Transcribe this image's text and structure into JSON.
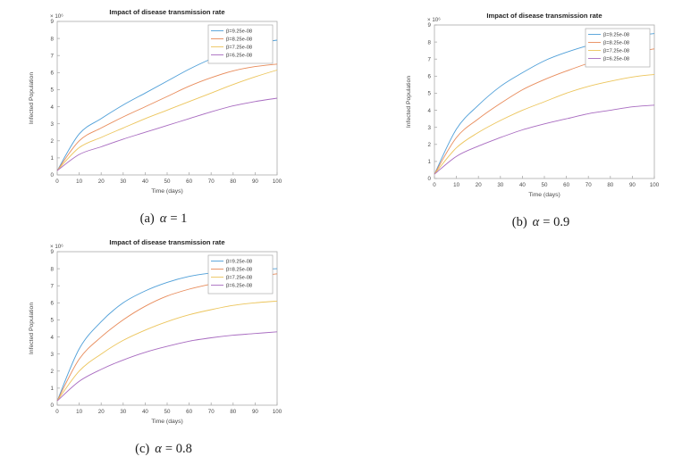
{
  "page": {
    "background": "#ffffff"
  },
  "chart_data": [
    {
      "id": "a",
      "type": "line",
      "title": "Impact of disease transmission rate",
      "xlabel": "Time (days)",
      "ylabel": "Infected Population",
      "exponent_label": "× 10⁶",
      "caption_label": "(a)",
      "caption_symbol": "α",
      "caption_value": "= 1",
      "xlim": [
        0,
        100
      ],
      "ylim": [
        0,
        9
      ],
      "xticks": [
        0,
        10,
        20,
        30,
        40,
        50,
        60,
        70,
        80,
        90,
        100
      ],
      "yticks": [
        0,
        1,
        2,
        3,
        4,
        5,
        6,
        7,
        8,
        9
      ],
      "legend_position": "top-right",
      "grid": false,
      "x": [
        0,
        10,
        20,
        30,
        40,
        50,
        60,
        70,
        80,
        90,
        100
      ],
      "series": [
        {
          "name": "β=9.25e-08",
          "color": "#4f9fd8",
          "values": [
            0.25,
            2.4,
            3.3,
            4.1,
            4.8,
            5.5,
            6.2,
            6.8,
            7.3,
            7.7,
            7.9
          ]
        },
        {
          "name": "β=8.25e-08",
          "color": "#e88b5a",
          "values": [
            0.25,
            2.0,
            2.75,
            3.4,
            4.0,
            4.6,
            5.2,
            5.7,
            6.1,
            6.35,
            6.5
          ]
        },
        {
          "name": "β=7.25e-08",
          "color": "#ecc55c",
          "values": [
            0.25,
            1.6,
            2.2,
            2.75,
            3.3,
            3.8,
            4.3,
            4.8,
            5.3,
            5.75,
            6.15
          ]
        },
        {
          "name": "β=6.25e-08",
          "color": "#a86bc0",
          "values": [
            0.25,
            1.2,
            1.65,
            2.1,
            2.5,
            2.9,
            3.3,
            3.7,
            4.05,
            4.3,
            4.5
          ]
        }
      ]
    },
    {
      "id": "b",
      "type": "line",
      "title": "Impact of disease transmission rate",
      "xlabel": "Time (days)",
      "ylabel": "Infected Population",
      "exponent_label": "× 10⁶",
      "caption_label": "(b)",
      "caption_symbol": "α",
      "caption_value": "= 0.9",
      "xlim": [
        0,
        100
      ],
      "ylim": [
        0,
        9
      ],
      "xticks": [
        0,
        10,
        20,
        30,
        40,
        50,
        60,
        70,
        80,
        90,
        100
      ],
      "yticks": [
        0,
        1,
        2,
        3,
        4,
        5,
        6,
        7,
        8,
        9
      ],
      "legend_position": "top-right",
      "grid": false,
      "x": [
        0,
        10,
        20,
        30,
        40,
        50,
        60,
        70,
        80,
        90,
        100
      ],
      "series": [
        {
          "name": "β=9.25e-08",
          "color": "#4f9fd8",
          "values": [
            0.25,
            2.9,
            4.3,
            5.4,
            6.2,
            6.9,
            7.4,
            7.8,
            8.1,
            8.35,
            8.5
          ]
        },
        {
          "name": "β=8.25e-08",
          "color": "#e88b5a",
          "values": [
            0.25,
            2.4,
            3.5,
            4.4,
            5.2,
            5.8,
            6.3,
            6.75,
            7.1,
            7.4,
            7.6
          ]
        },
        {
          "name": "β=7.25e-08",
          "color": "#ecc55c",
          "values": [
            0.25,
            1.8,
            2.7,
            3.4,
            4.0,
            4.5,
            5.0,
            5.4,
            5.7,
            5.95,
            6.1
          ]
        },
        {
          "name": "β=6.25e-08",
          "color": "#a86bc0",
          "values": [
            0.25,
            1.3,
            1.9,
            2.4,
            2.85,
            3.2,
            3.5,
            3.8,
            4.0,
            4.2,
            4.3
          ]
        }
      ]
    },
    {
      "id": "c",
      "type": "line",
      "title": "Impact of disease transmission rate",
      "xlabel": "Time (days)",
      "ylabel": "Infected Population",
      "exponent_label": "× 10⁶",
      "caption_label": "(c)",
      "caption_symbol": "α",
      "caption_value": "= 0.8",
      "xlim": [
        0,
        100
      ],
      "ylim": [
        0,
        9
      ],
      "xticks": [
        0,
        10,
        20,
        30,
        40,
        50,
        60,
        70,
        80,
        90,
        100
      ],
      "yticks": [
        0,
        1,
        2,
        3,
        4,
        5,
        6,
        7,
        8,
        9
      ],
      "legend_position": "top-right",
      "grid": false,
      "x": [
        0,
        10,
        20,
        30,
        40,
        50,
        60,
        70,
        80,
        90,
        100
      ],
      "series": [
        {
          "name": "β=9.25e-08",
          "color": "#4f9fd8",
          "values": [
            0.25,
            3.3,
            4.9,
            6.0,
            6.7,
            7.2,
            7.55,
            7.75,
            7.9,
            7.95,
            8.0
          ]
        },
        {
          "name": "β=8.25e-08",
          "color": "#e88b5a",
          "values": [
            0.25,
            2.7,
            4.0,
            5.0,
            5.8,
            6.4,
            6.8,
            7.1,
            7.35,
            7.55,
            7.7
          ]
        },
        {
          "name": "β=7.25e-08",
          "color": "#ecc55c",
          "values": [
            0.25,
            2.0,
            3.0,
            3.8,
            4.4,
            4.9,
            5.3,
            5.6,
            5.85,
            6.0,
            6.1
          ]
        },
        {
          "name": "β=6.25e-08",
          "color": "#a86bc0",
          "values": [
            0.25,
            1.4,
            2.1,
            2.65,
            3.1,
            3.45,
            3.75,
            3.95,
            4.1,
            4.2,
            4.3
          ]
        }
      ]
    }
  ]
}
